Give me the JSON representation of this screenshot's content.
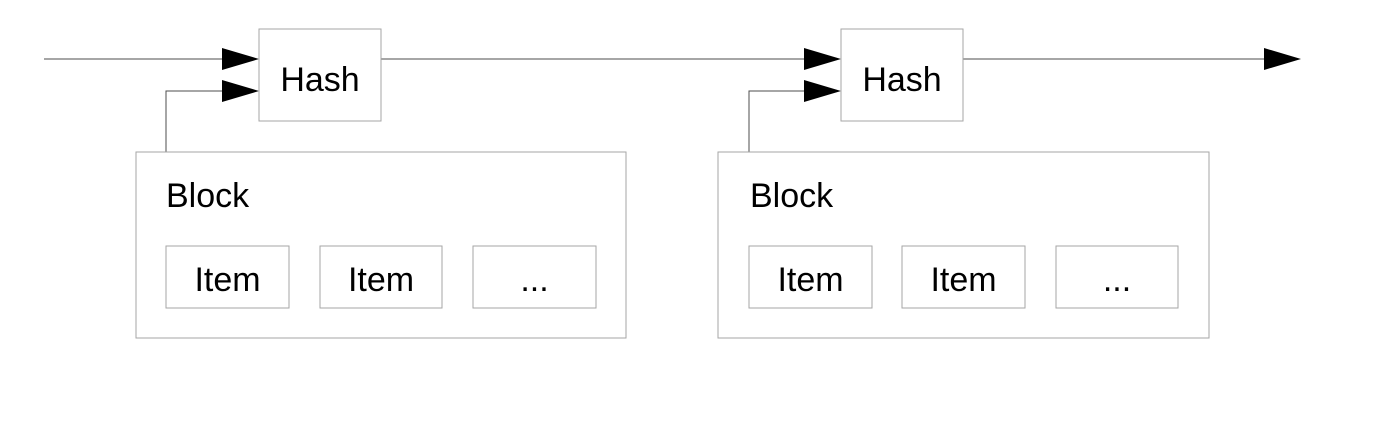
{
  "diagram": {
    "hash_label": "Hash",
    "block_label": "Block",
    "item_label": "Item",
    "ellipsis_label": "...",
    "groups": [
      {
        "hash": "Hash",
        "block": "Block",
        "items": [
          "Item",
          "Item",
          "..."
        ]
      },
      {
        "hash": "Hash",
        "block": "Block",
        "items": [
          "Item",
          "Item",
          "..."
        ]
      }
    ]
  }
}
